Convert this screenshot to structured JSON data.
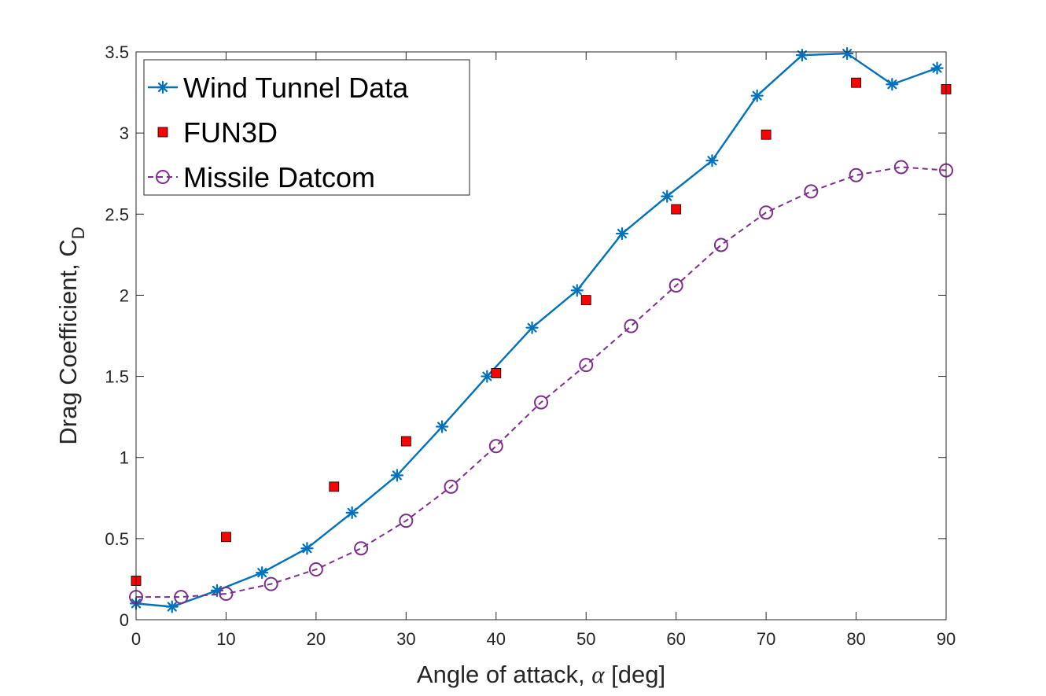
{
  "chart_data": {
    "type": "line",
    "title": "",
    "xlabel_prefix": "Angle of attack, ",
    "xlabel_symbol": "α",
    "xlabel_suffix": " [deg]",
    "ylabel_main": "Drag Coefficient, C",
    "ylabel_sub": "D",
    "xlim": [
      0,
      90
    ],
    "ylim": [
      0,
      3.5
    ],
    "xticks": [
      0,
      10,
      20,
      30,
      40,
      50,
      60,
      70,
      80,
      90
    ],
    "xtick_labels": [
      "0",
      "10",
      "20",
      "30",
      "40",
      "50",
      "60",
      "70",
      "80",
      "90"
    ],
    "yticks": [
      0,
      0.5,
      1,
      1.5,
      2,
      2.5,
      3,
      3.5
    ],
    "ytick_labels": [
      "0",
      "0.5",
      "1",
      "1.5",
      "2",
      "2.5",
      "3",
      "3.5"
    ],
    "grid": false,
    "legend_position": "top-left",
    "series": [
      {
        "name": "Wind Tunnel Data",
        "color": "#0072BD",
        "line": "solid",
        "marker": "asterisk",
        "x": [
          0,
          4,
          9,
          14,
          19,
          24,
          29,
          34,
          39,
          44,
          49,
          54,
          59,
          64,
          69,
          74,
          79,
          84,
          89
        ],
        "y": [
          0.1,
          0.08,
          0.18,
          0.29,
          0.44,
          0.66,
          0.89,
          1.19,
          1.5,
          1.8,
          2.03,
          2.38,
          2.61,
          2.83,
          3.23,
          3.48,
          3.49,
          3.3,
          3.4
        ]
      },
      {
        "name": "FUN3D",
        "color": "#FF0000",
        "line": "none",
        "marker": "square",
        "x": [
          0,
          10,
          22,
          30,
          40,
          50,
          60,
          70,
          80,
          90
        ],
        "y": [
          0.24,
          0.51,
          0.82,
          1.1,
          1.52,
          1.97,
          2.53,
          2.99,
          3.31,
          3.27
        ]
      },
      {
        "name": "Missile Datcom",
        "color": "#7E2F8E",
        "line": "dashed",
        "marker": "circle",
        "x": [
          0,
          5,
          10,
          15,
          20,
          25,
          30,
          35,
          40,
          45,
          50,
          55,
          60,
          65,
          70,
          75,
          80,
          85,
          90
        ],
        "y": [
          0.14,
          0.14,
          0.16,
          0.22,
          0.31,
          0.44,
          0.61,
          0.82,
          1.07,
          1.34,
          1.57,
          1.81,
          2.06,
          2.31,
          2.51,
          2.64,
          2.74,
          2.79,
          2.77
        ]
      }
    ]
  }
}
